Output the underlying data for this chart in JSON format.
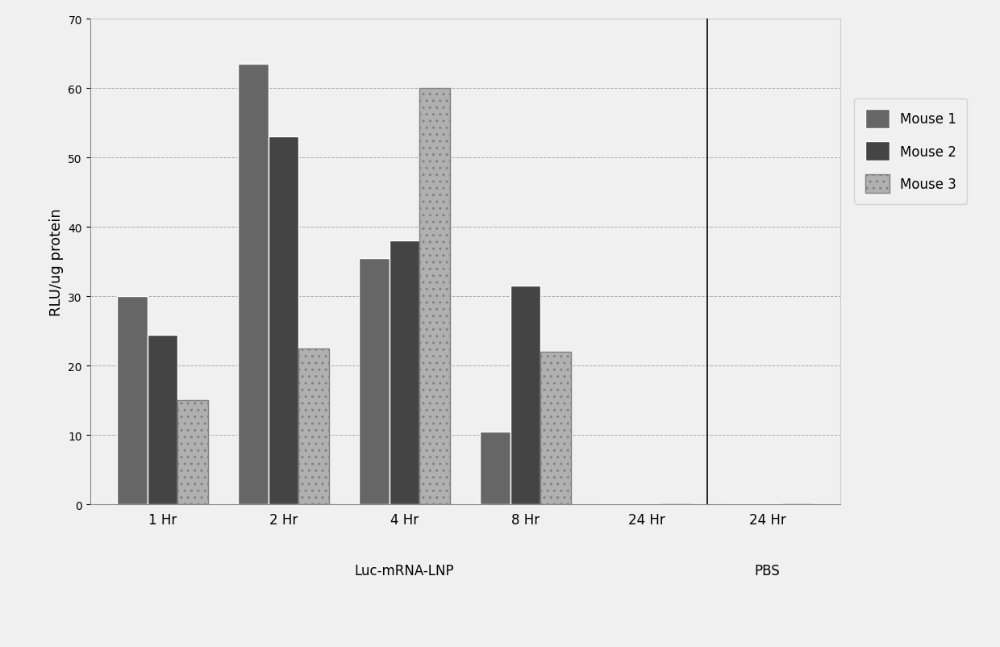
{
  "groups": [
    "1 Hr",
    "2 Hr",
    "4 Hr",
    "8 Hr",
    "24 Hr",
    "24 Hr"
  ],
  "mouse1": [
    30,
    63.5,
    35.5,
    10.5,
    0,
    0
  ],
  "mouse2": [
    24.5,
    53,
    38,
    31.5,
    0,
    0
  ],
  "mouse3": [
    15,
    22.5,
    60,
    22,
    0,
    0
  ],
  "color_mouse1": "#666666",
  "color_mouse2": "#444444",
  "color_mouse3": "#b0b0b0",
  "hatch_mouse1": "",
  "hatch_mouse2": "",
  "hatch_mouse3": "..",
  "ylabel": "RLU/ug protein",
  "ylim": [
    0,
    70
  ],
  "yticks": [
    0,
    10,
    20,
    30,
    40,
    50,
    60,
    70
  ],
  "legend_labels": [
    "Mouse 1",
    "Mouse 2",
    "Mouse 3"
  ],
  "background_color": "#f0f0f0",
  "plot_bg_color": "#f0f0f0",
  "grid_color": "#aaaaaa",
  "lnp_label": "Luc-mRNA-LNP",
  "pbs_label": "PBS",
  "bar_width": 0.25,
  "figsize": [
    12.4,
    8.03
  ],
  "dpi": 100
}
